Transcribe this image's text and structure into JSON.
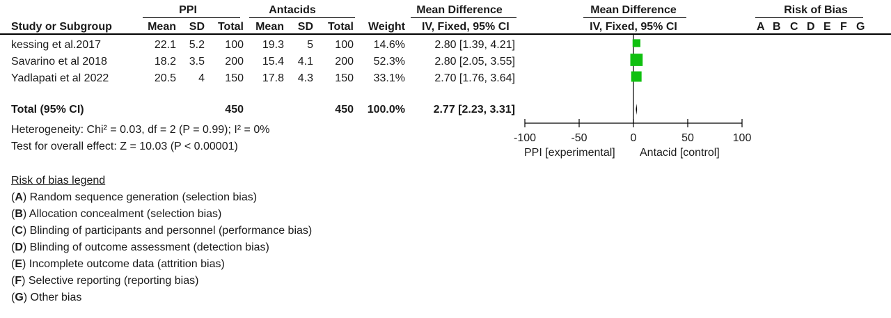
{
  "header": {
    "group_exp": "PPI",
    "group_ctrl": "Antacids",
    "md_title": "Mean Difference",
    "md_method": "IV, Fixed, 95% CI",
    "plot_title": "Mean Difference",
    "plot_method": "IV, Fixed, 95% CI",
    "rob_title": "Risk of Bias",
    "rob_letters": [
      "A",
      "B",
      "C",
      "D",
      "E",
      "F",
      "G"
    ],
    "col_study": "Study or Subgroup",
    "col_mean": "Mean",
    "col_sd": "SD",
    "col_total": "Total",
    "col_weight": "Weight"
  },
  "studies": [
    {
      "name": "kessing et al.2017",
      "exp_mean": "22.1",
      "exp_sd": "5.2",
      "exp_total": "100",
      "ctrl_mean": "19.3",
      "ctrl_sd": "5",
      "ctrl_total": "100",
      "weight": "14.6%",
      "ci": "2.80 [1.39, 4.21]"
    },
    {
      "name": "Savarino et al 2018",
      "exp_mean": "18.2",
      "exp_sd": "3.5",
      "exp_total": "200",
      "ctrl_mean": "15.4",
      "ctrl_sd": "4.1",
      "ctrl_total": "200",
      "weight": "52.3%",
      "ci": "2.80 [2.05, 3.55]"
    },
    {
      "name": "Yadlapati et al 2022",
      "exp_mean": "20.5",
      "exp_sd": "4",
      "exp_total": "150",
      "ctrl_mean": "17.8",
      "ctrl_sd": "4.3",
      "ctrl_total": "150",
      "weight": "33.1%",
      "ci": "2.70 [1.76, 3.64]"
    }
  ],
  "total": {
    "label": "Total (95% CI)",
    "exp_total": "450",
    "ctrl_total": "450",
    "weight": "100.0%",
    "ci": "2.77 [2.23, 3.31]"
  },
  "heterogeneity": "Heterogeneity: Chi² = 0.03, df = 2 (P = 0.99); I² = 0%",
  "overall_effect": "Test for overall effect: Z = 10.03 (P < 0.00001)",
  "axis": {
    "favours_left": "PPI [experimental]",
    "favours_right": "Antacid [control]"
  },
  "legend": {
    "title": "Risk of bias legend",
    "items": [
      {
        "letter": "A",
        "text": ") Random sequence generation (selection bias)"
      },
      {
        "letter": "B",
        "text": ") Allocation concealment (selection bias)"
      },
      {
        "letter": "C",
        "text": ") Blinding of participants and personnel (performance bias)"
      },
      {
        "letter": "D",
        "text": ") Blinding of outcome assessment (detection bias)"
      },
      {
        "letter": "E",
        "text": ") Incomplete outcome data (attrition bias)"
      },
      {
        "letter": "F",
        "text": ") Selective reporting (reporting bias)"
      },
      {
        "letter": "G",
        "text": ") Other bias"
      }
    ]
  },
  "colors": {
    "marker": "#10c010",
    "text": "#1a1a1a"
  },
  "chart_data": {
    "type": "scatter",
    "title": "",
    "xlim": [
      -100,
      100
    ],
    "xticks": [
      "-100",
      "-50",
      "0",
      "50",
      "100"
    ],
    "xtick_values": [
      -100,
      -50,
      0,
      50,
      100
    ],
    "series": [
      {
        "values": [
          {
            "study": "kessing et al.2017",
            "md": 2.8,
            "lower": 1.39,
            "upper": 4.21,
            "weight": 14.6
          },
          {
            "study": "Savarino et al 2018",
            "md": 2.8,
            "lower": 2.05,
            "upper": 3.55,
            "weight": 52.3
          },
          {
            "study": "Yadlapati et al 2022",
            "md": 2.7,
            "lower": 1.76,
            "upper": 3.64,
            "weight": 33.1
          }
        ]
      }
    ],
    "pooled": {
      "md": 2.77,
      "lower": 2.23,
      "upper": 3.31
    }
  }
}
